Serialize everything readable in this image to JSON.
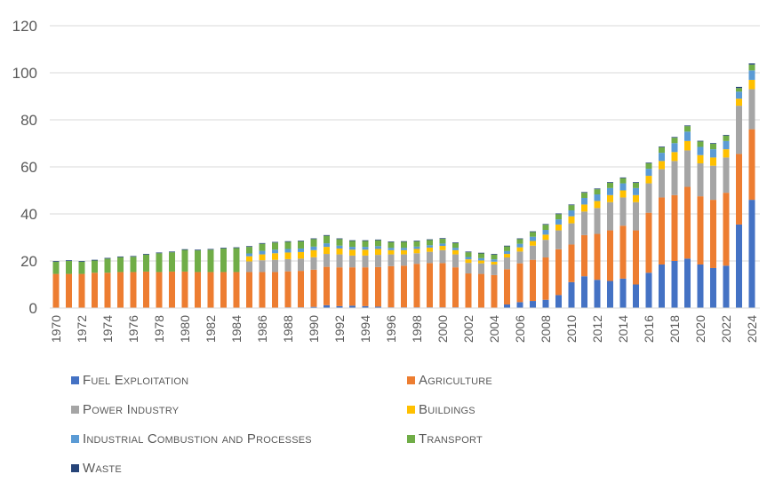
{
  "chart_data": {
    "type": "bar",
    "stacked": true,
    "title": "",
    "xlabel": "",
    "ylabel": "",
    "ylim": [
      0,
      120
    ],
    "yticks": [
      0,
      20,
      40,
      60,
      80,
      100,
      120
    ],
    "grid": true,
    "legend_position": "bottom",
    "x_label_step": 2,
    "categories": [
      "1970",
      "1971",
      "1972",
      "1973",
      "1974",
      "1975",
      "1976",
      "1977",
      "1978",
      "1979",
      "1980",
      "1981",
      "1982",
      "1983",
      "1984",
      "1985",
      "1986",
      "1987",
      "1988",
      "1989",
      "1990",
      "1991",
      "1992",
      "1993",
      "1994",
      "1995",
      "1996",
      "1997",
      "1998",
      "1999",
      "2000",
      "2001",
      "2002",
      "2003",
      "2004",
      "2005",
      "2006",
      "2007",
      "2008",
      "2009",
      "2010",
      "2011",
      "2012",
      "2013",
      "2014",
      "2015",
      "2016",
      "2017",
      "2018",
      "2019",
      "2020",
      "2021",
      "2022",
      "2023",
      "2024"
    ],
    "series": [
      {
        "name": "Fuel Exploitation",
        "color": "#4472C4",
        "values": [
          0,
          0,
          0,
          0,
          0,
          0,
          0,
          0,
          0,
          0,
          0,
          0,
          0,
          0,
          0,
          0,
          0,
          0,
          0.3,
          0.3,
          0.5,
          1.2,
          0.8,
          1,
          0.8,
          0.6,
          0.3,
          0.3,
          0.3,
          0.3,
          0.3,
          0.3,
          0.2,
          0.2,
          0.2,
          1.5,
          2.5,
          3,
          3.5,
          5.5,
          11,
          13.5,
          12,
          11.5,
          12.5,
          10,
          15,
          18.5,
          20,
          21,
          18.5,
          17,
          18,
          35.5,
          46
        ]
      },
      {
        "name": "Agriculture",
        "color": "#ED7D31",
        "values": [
          14.5,
          14.5,
          14.5,
          15,
          15,
          15.3,
          15.3,
          15.5,
          15.3,
          15.5,
          15.5,
          15.3,
          15.3,
          15.3,
          15.3,
          15.3,
          15.3,
          15.3,
          15.3,
          15.5,
          15.8,
          16.3,
          16.5,
          16.3,
          16.5,
          16.8,
          17.5,
          17.7,
          18.5,
          18.8,
          18.8,
          17,
          14.5,
          14.3,
          13.8,
          15,
          16.5,
          17.5,
          18,
          19.5,
          16,
          17.5,
          19.5,
          21.5,
          22.5,
          23,
          25.5,
          28.5,
          28,
          30.5,
          29,
          29,
          31,
          30,
          30
        ]
      },
      {
        "name": "Power Industry",
        "color": "#A5A5A5",
        "values": [
          0,
          0,
          0,
          0,
          0,
          0,
          0,
          0,
          0,
          0,
          0,
          0,
          0,
          0,
          0,
          4.5,
          5,
          5.2,
          5.2,
          5.2,
          5.3,
          5.5,
          5.5,
          5,
          5,
          5.2,
          5,
          4.8,
          4.5,
          4.8,
          5.5,
          5.5,
          4.5,
          4.5,
          4.5,
          5,
          5,
          6,
          7.5,
          8,
          9,
          10,
          11,
          12,
          12,
          12,
          12.5,
          12,
          14.5,
          15.5,
          14,
          14.5,
          15,
          20.5,
          17
        ]
      },
      {
        "name": "Buildings",
        "color": "#FFC000",
        "values": [
          0,
          0,
          0,
          0,
          0,
          0,
          0,
          0,
          0,
          0,
          0,
          0,
          0,
          0,
          0,
          2.2,
          2.5,
          2.8,
          2.8,
          2.8,
          3,
          3,
          2.5,
          2.5,
          2.5,
          2.5,
          1.8,
          1.8,
          1.8,
          1.8,
          1.8,
          1.8,
          1.5,
          1.2,
          1.2,
          1.5,
          1.8,
          2,
          2.2,
          2.5,
          3,
          3,
          3,
          3,
          3,
          3,
          3.2,
          3.5,
          3.8,
          4,
          3.5,
          3.5,
          3.5,
          3,
          4
        ]
      },
      {
        "name": "Industrial Combustion and Processes",
        "color": "#5B9BD5",
        "values": [
          0,
          0,
          0,
          0,
          0,
          0,
          0,
          0,
          0,
          0,
          0,
          0,
          0,
          0,
          0,
          1.2,
          1.5,
          1.5,
          1.5,
          1.5,
          1.5,
          1.5,
          1.2,
          1.2,
          1.2,
          1.2,
          1,
          1,
          1,
          1,
          1,
          1,
          1,
          1,
          1,
          1.2,
          1.5,
          1.8,
          2,
          2.2,
          2.5,
          2.8,
          2.8,
          3,
          3,
          3,
          3,
          3.5,
          3.8,
          4,
          3.5,
          3.5,
          3.5,
          3,
          4
        ]
      },
      {
        "name": "Transport",
        "color": "#70AD47",
        "values": [
          5.2,
          5.5,
          5.2,
          5.2,
          6,
          6.3,
          6.5,
          7.2,
          8,
          8.2,
          9.2,
          9.2,
          9.5,
          10,
          10.2,
          2.8,
          3,
          3,
          3,
          3,
          3.2,
          3.2,
          2.8,
          2.5,
          2.5,
          2.5,
          2.4,
          2.5,
          2.2,
          2.2,
          2,
          2,
          2,
          2,
          2,
          2,
          2,
          2,
          2.2,
          2.2,
          2.2,
          2.2,
          2.2,
          2.2,
          2.2,
          2.2,
          2.3,
          2.3,
          2.3,
          2.3,
          2.3,
          2.3,
          2.3,
          1.5,
          2.5
        ]
      },
      {
        "name": "Waste",
        "color": "#264478",
        "values": [
          0.3,
          0.3,
          0.3,
          0.3,
          0.3,
          0.3,
          0.3,
          0.3,
          0.3,
          0.3,
          0.3,
          0.3,
          0.3,
          0.3,
          0.3,
          0.3,
          0.3,
          0.3,
          0.3,
          0.3,
          0.3,
          0.3,
          0.3,
          0.3,
          0.3,
          0.3,
          0.3,
          0.3,
          0.3,
          0.3,
          0.3,
          0.3,
          0.3,
          0.3,
          0.3,
          0.3,
          0.3,
          0.3,
          0.3,
          0.3,
          0.3,
          0.3,
          0.3,
          0.3,
          0.3,
          0.3,
          0.3,
          0.3,
          0.3,
          0.3,
          0.3,
          0.3,
          0.3,
          0.5,
          0.5
        ]
      }
    ]
  },
  "legend": {
    "items": [
      {
        "label": "Fuel Exploitation",
        "color": "#4472C4"
      },
      {
        "label": "Agriculture",
        "color": "#ED7D31"
      },
      {
        "label": "Power Industry",
        "color": "#A5A5A5"
      },
      {
        "label": "Buildings",
        "color": "#FFC000"
      },
      {
        "label": "Industrial Combustion and Processes",
        "color": "#5B9BD5"
      },
      {
        "label": "Transport",
        "color": "#70AD47"
      },
      {
        "label": "Waste",
        "color": "#264478"
      }
    ]
  }
}
